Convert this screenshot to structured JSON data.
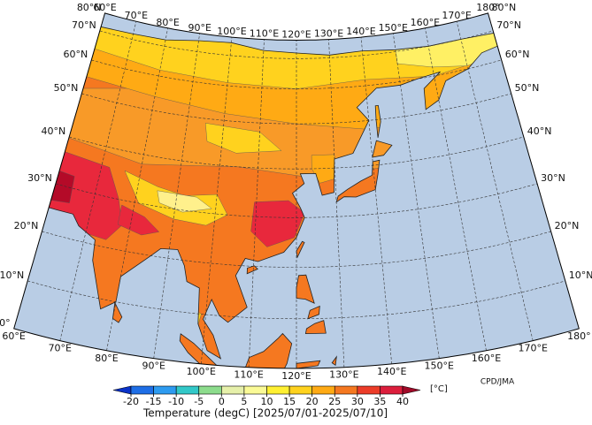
{
  "map": {
    "lat_labels_left": [
      "0°",
      "10°N",
      "20°N",
      "30°N",
      "40°N",
      "50°N",
      "60°N",
      "70°N",
      "80°N"
    ],
    "lat_labels_right": [
      "10°N",
      "20°N",
      "30°N",
      "40°N",
      "50°N",
      "60°N",
      "70°N",
      "80°N"
    ],
    "lon_labels_top": [
      "60°E",
      "70°E",
      "80°E",
      "90°E",
      "100°E",
      "110°E",
      "120°E",
      "130°E",
      "140°E",
      "150°E",
      "160°E",
      "170°E",
      "180°"
    ],
    "lon_labels_bottom": [
      "60°E",
      "70°E",
      "80°E",
      "90°E",
      "100°E",
      "110°E",
      "120°E",
      "130°E",
      "140°E",
      "150°E",
      "160°E",
      "170°E",
      "180°"
    ],
    "credit": "CPD/JMA"
  },
  "colorbar": {
    "ticks": [
      -20,
      -15,
      -10,
      -5,
      0,
      5,
      10,
      15,
      20,
      25,
      30,
      35,
      40
    ],
    "colors": [
      "#0a32c8",
      "#1e6ee6",
      "#2d9bf0",
      "#32c8c8",
      "#8cdc8c",
      "#e6f0aa",
      "#fafa96",
      "#fff032",
      "#ffd21e",
      "#ffaa14",
      "#f57820",
      "#ec3c28",
      "#dc1e3c",
      "#a00a28"
    ],
    "unit": "[°C]",
    "title": "Temperature (degC) [2025/07/01-2025/07/10]"
  }
}
